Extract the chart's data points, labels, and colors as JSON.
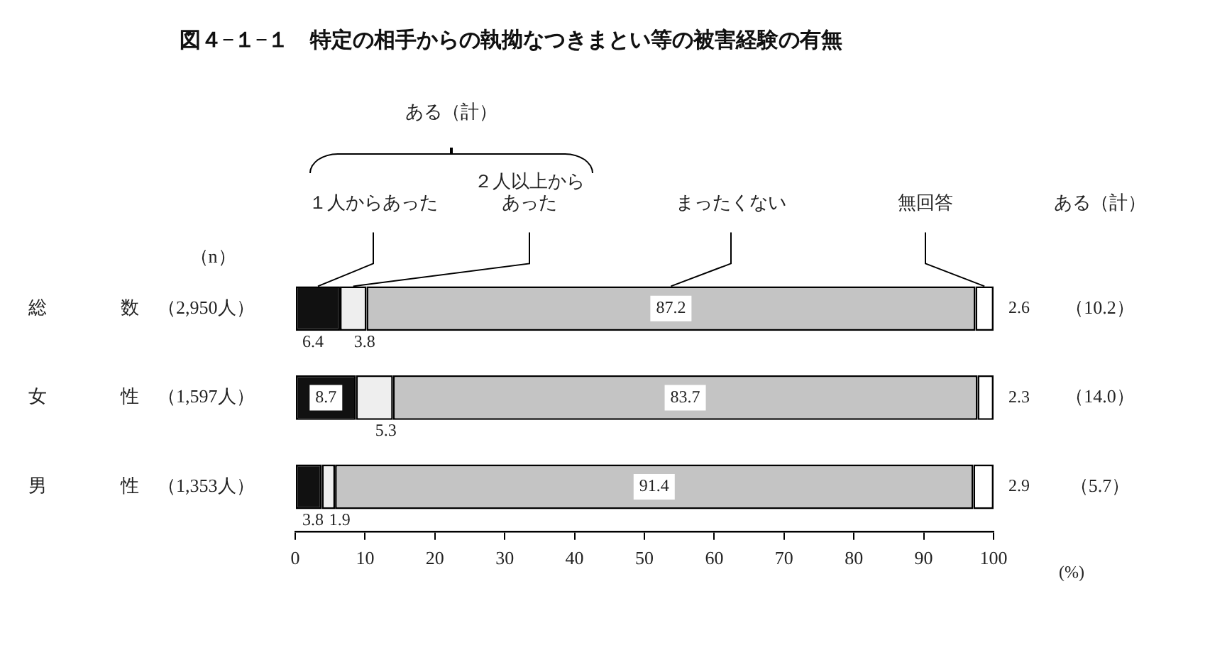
{
  "chart_data": {
    "type": "bar",
    "orientation": "horizontal",
    "stacked": true,
    "title": "図４−１−１　特定の相手からの執拗なつきまとい等の被害経験の有無",
    "xlabel": "(%)",
    "categories": [
      "総　　　　数　（2,950人）",
      "女　　　　性　（1,597人）",
      "男　　　　性　（1,353人）"
    ],
    "series": [
      {
        "name": "１人からあった",
        "color": "#111111",
        "values": [
          6.4,
          8.7,
          3.8
        ]
      },
      {
        "name": "２人以上からあった",
        "color": "#eeeeee",
        "values": [
          3.8,
          5.3,
          1.9
        ]
      },
      {
        "name": "まったくない",
        "color": "#c4c4c4",
        "values": [
          87.2,
          83.7,
          91.4
        ]
      },
      {
        "name": "無回答",
        "color": "#ffffff",
        "values": [
          2.6,
          2.3,
          2.9
        ]
      }
    ],
    "xlim": [
      0,
      100
    ],
    "xticks": [
      0,
      10,
      20,
      30,
      40,
      50,
      60,
      70,
      80,
      90,
      100
    ],
    "data_labels": true,
    "legend": false,
    "grid": false,
    "annotations": [
      "ある（計）",
      "（n）",
      "ある（計）",
      "（10.2）",
      "（14.0）",
      "（5.7）"
    ]
  }
}
